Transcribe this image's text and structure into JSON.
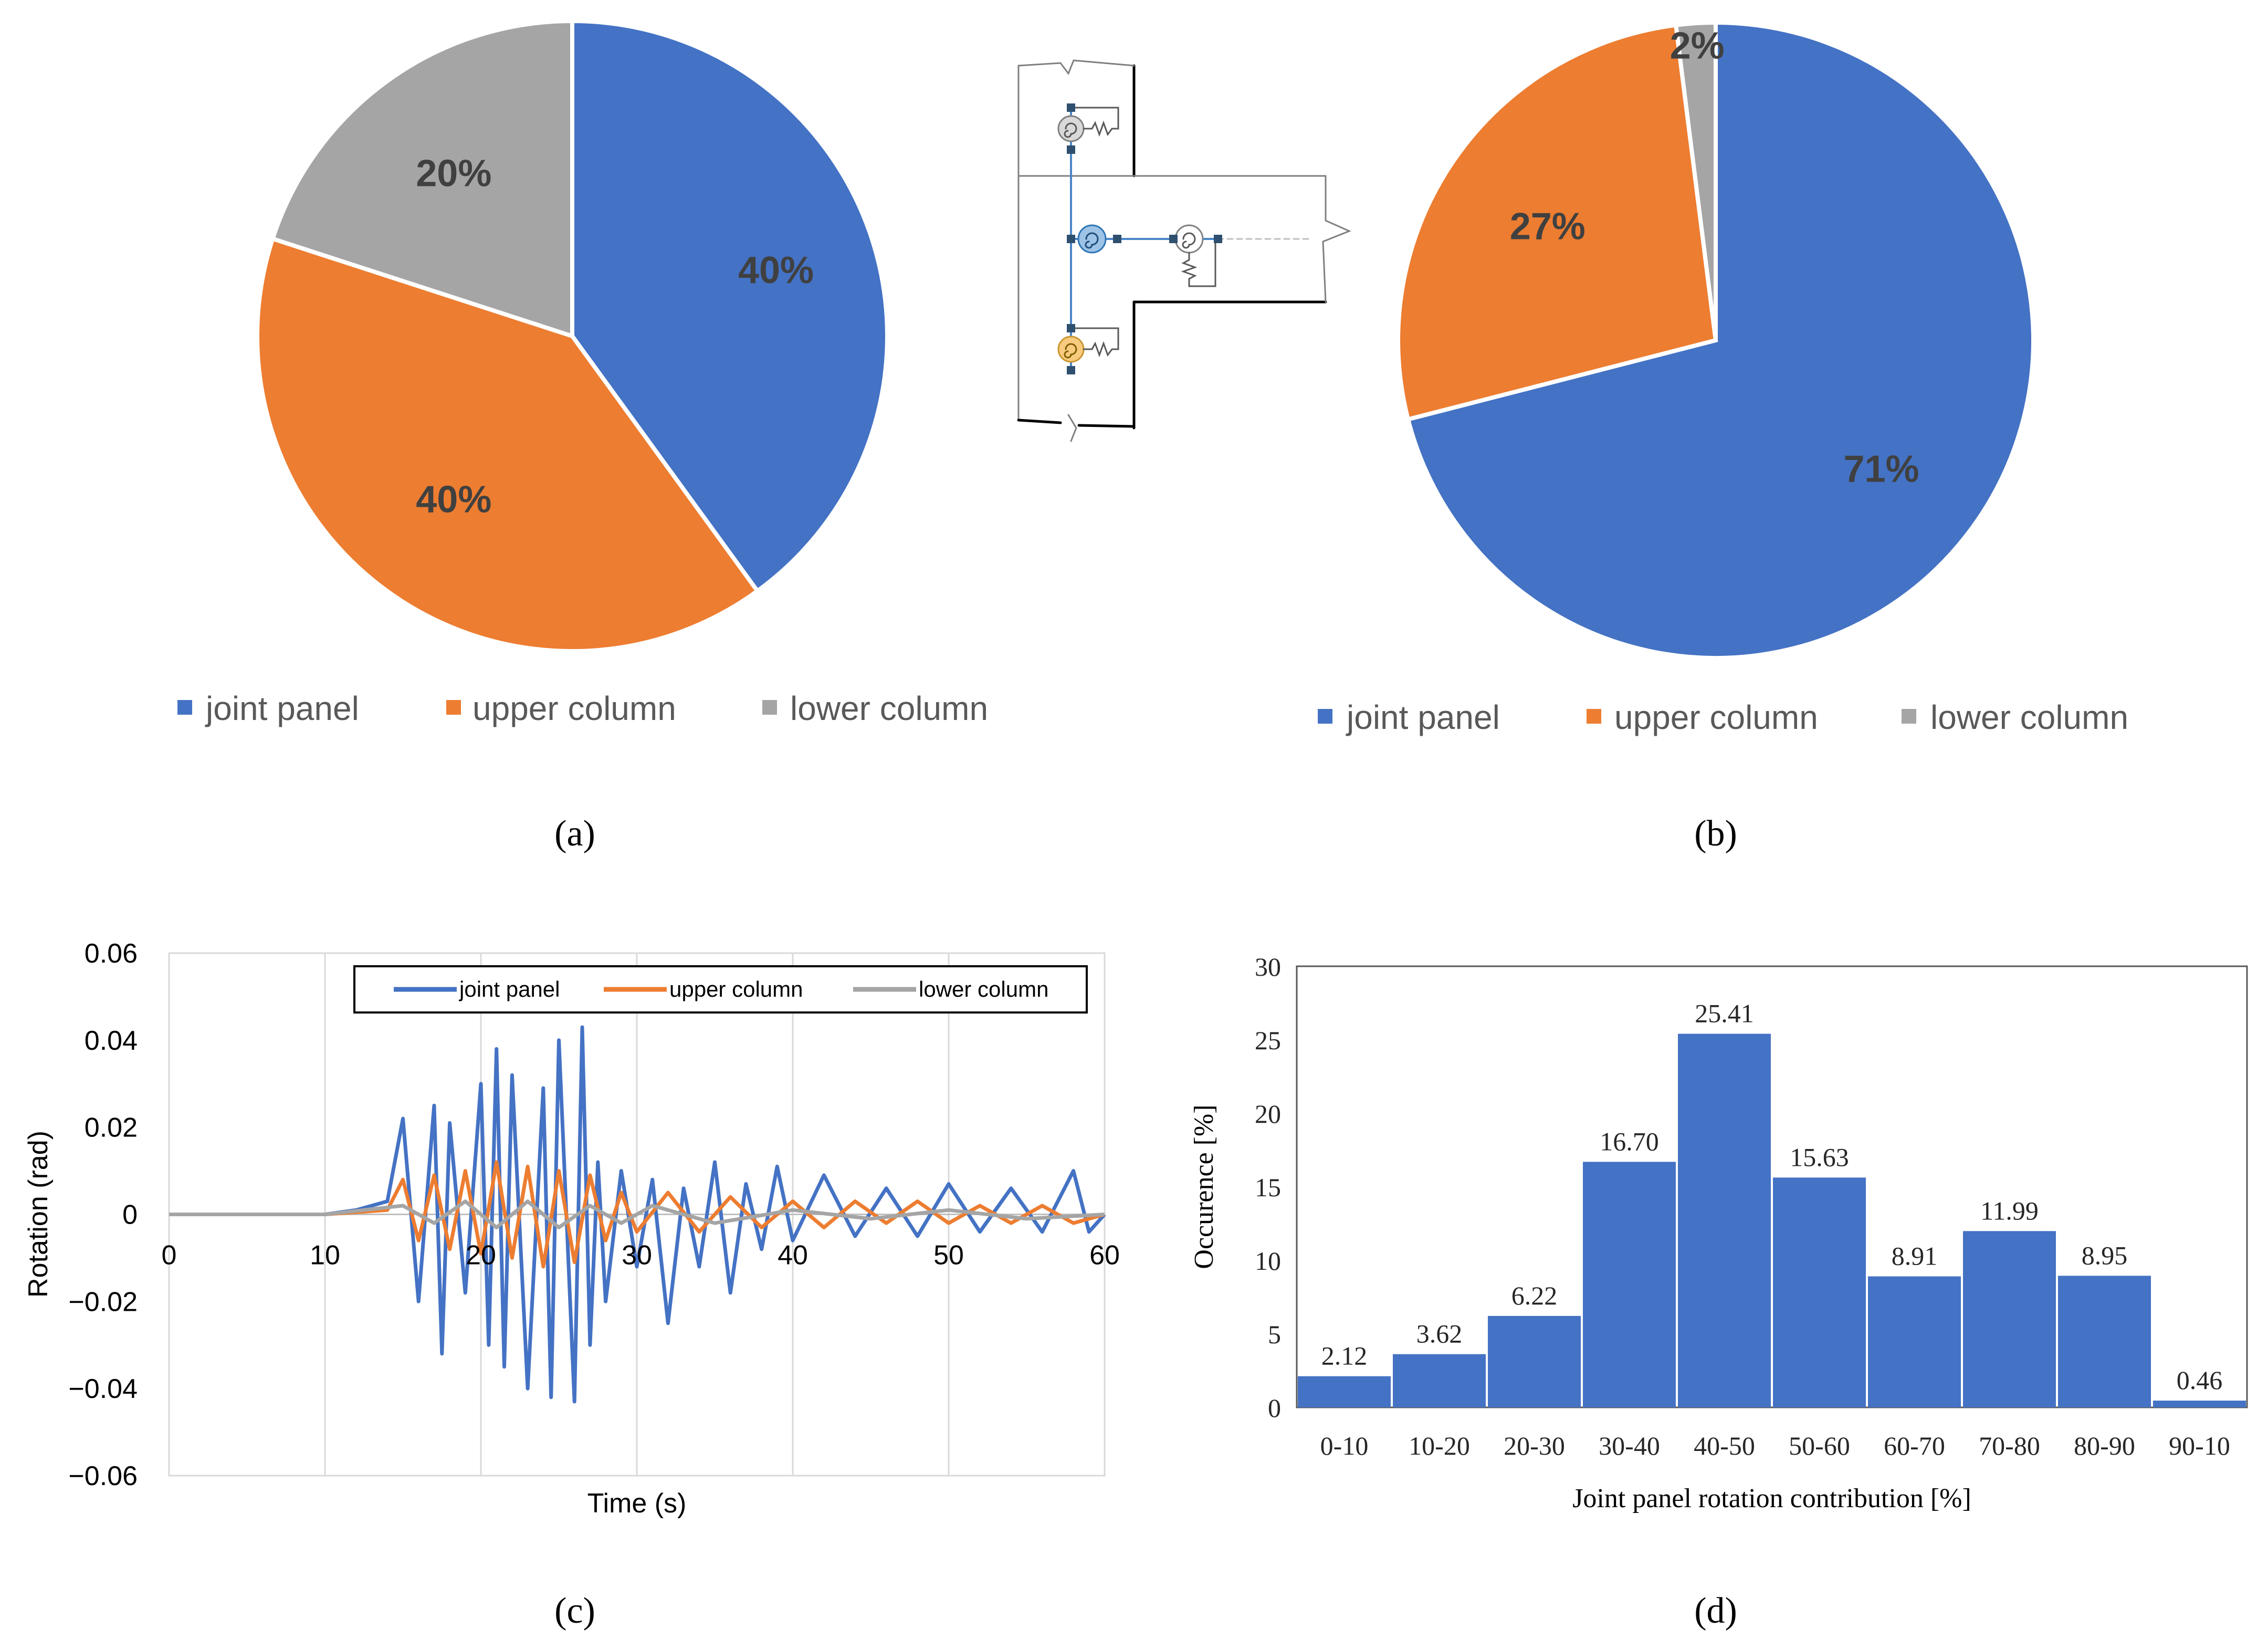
{
  "colors": {
    "blue": "#4472C4",
    "orange": "#ED7D31",
    "gray": "#A5A5A5"
  },
  "captions": {
    "a": "(a)",
    "b": "(b)",
    "c": "(c)",
    "d": "(d)"
  },
  "chart_data": [
    {
      "type": "pie",
      "panel": "a",
      "labels": [
        "joint panel",
        "upper column",
        "lower column"
      ],
      "values": [
        40,
        40,
        20
      ],
      "data_labels": [
        "40%",
        "40%",
        "20%"
      ],
      "colors": [
        "#4472C4",
        "#ED7D31",
        "#A5A5A5"
      ],
      "legend_placement": "bottom"
    },
    {
      "type": "pie",
      "panel": "b",
      "labels": [
        "joint panel",
        "upper column",
        "lower column"
      ],
      "values": [
        71,
        27,
        2
      ],
      "data_labels": [
        "71%",
        "27%",
        "2%"
      ],
      "colors": [
        "#4472C4",
        "#ED7D31",
        "#A5A5A5"
      ],
      "legend_placement": "bottom"
    },
    {
      "type": "line",
      "panel": "c",
      "xlabel": "Time (s)",
      "ylabel": "Rotation (rad)",
      "xlim": [
        0,
        60
      ],
      "ylim": [
        -0.06,
        0.06
      ],
      "xticks": [
        "0",
        "10",
        "20",
        "30",
        "40",
        "50",
        "60"
      ],
      "yticks": [
        "0.06",
        "0.04",
        "0.02",
        "0",
        "−0.02",
        "−0.04",
        "−0.06"
      ],
      "grid": "vertical",
      "legend_placement": "top-right",
      "series": [
        {
          "name": "joint panel",
          "color": "#4472C4",
          "x": [
            0,
            10,
            12,
            14,
            15,
            16,
            17,
            17.5,
            18,
            19,
            20,
            20.5,
            21,
            21.5,
            22,
            23,
            24,
            24.5,
            25,
            26,
            26.5,
            27,
            27.5,
            28,
            29,
            30,
            31,
            32,
            33,
            34,
            35,
            36,
            37,
            38,
            39,
            40,
            42,
            44,
            46,
            48,
            50,
            52,
            54,
            56,
            58,
            59,
            60
          ],
          "y": [
            0,
            0,
            0.001,
            0.003,
            0.022,
            -0.02,
            0.025,
            -0.032,
            0.021,
            -0.018,
            0.03,
            -0.03,
            0.038,
            -0.035,
            0.032,
            -0.04,
            0.029,
            -0.042,
            0.04,
            -0.043,
            0.043,
            -0.03,
            0.012,
            -0.02,
            0.01,
            -0.012,
            0.008,
            -0.025,
            0.006,
            -0.012,
            0.012,
            -0.018,
            0.007,
            -0.008,
            0.011,
            -0.006,
            0.009,
            -0.005,
            0.006,
            -0.005,
            0.007,
            -0.004,
            0.006,
            -0.004,
            0.01,
            -0.004,
            0.0
          ]
        },
        {
          "name": "upper column",
          "color": "#ED7D31",
          "x": [
            0,
            10,
            12,
            14,
            15,
            16,
            17,
            18,
            19,
            20,
            21,
            22,
            23,
            24,
            25,
            26,
            27,
            28,
            29,
            30,
            32,
            34,
            36,
            38,
            40,
            42,
            44,
            46,
            48,
            50,
            52,
            54,
            56,
            58,
            60
          ],
          "y": [
            0,
            0,
            0.0005,
            0.001,
            0.008,
            -0.006,
            0.009,
            -0.008,
            0.01,
            -0.009,
            0.012,
            -0.01,
            0.011,
            -0.012,
            0.01,
            -0.011,
            0.009,
            -0.006,
            0.005,
            -0.004,
            0.005,
            -0.004,
            0.004,
            -0.003,
            0.003,
            -0.003,
            0.003,
            -0.002,
            0.003,
            -0.002,
            0.002,
            -0.002,
            0.002,
            -0.002,
            0.0
          ]
        },
        {
          "name": "lower column",
          "color": "#A5A5A5",
          "x": [
            0,
            10,
            15,
            17,
            19,
            21,
            23,
            25,
            27,
            29,
            31,
            35,
            40,
            45,
            50,
            55,
            60
          ],
          "y": [
            0,
            0,
            0.002,
            -0.002,
            0.003,
            -0.003,
            0.003,
            -0.003,
            0.002,
            -0.002,
            0.002,
            -0.002,
            0.001,
            -0.001,
            0.001,
            -0.001,
            0.0
          ]
        }
      ]
    },
    {
      "type": "bar",
      "panel": "d",
      "xlabel": "Joint panel rotation contribution [%]",
      "ylabel": "Occurence [%]",
      "ylim": [
        0,
        30
      ],
      "yticks": [
        "0",
        "5",
        "10",
        "15",
        "20",
        "25",
        "30"
      ],
      "categories": [
        "0-10",
        "10-20",
        "20-30",
        "30-40",
        "40-50",
        "50-60",
        "60-70",
        "70-80",
        "80-90",
        "90-10"
      ],
      "values": [
        2.12,
        3.62,
        6.22,
        16.7,
        25.41,
        15.63,
        8.91,
        11.99,
        8.95,
        0.46
      ],
      "data_labels": [
        "2.12",
        "3.62",
        "6.22",
        "16.70",
        "25.41",
        "15.63",
        "8.91",
        "11.99",
        "8.95",
        "0.46"
      ],
      "color": "#4472C4"
    }
  ]
}
